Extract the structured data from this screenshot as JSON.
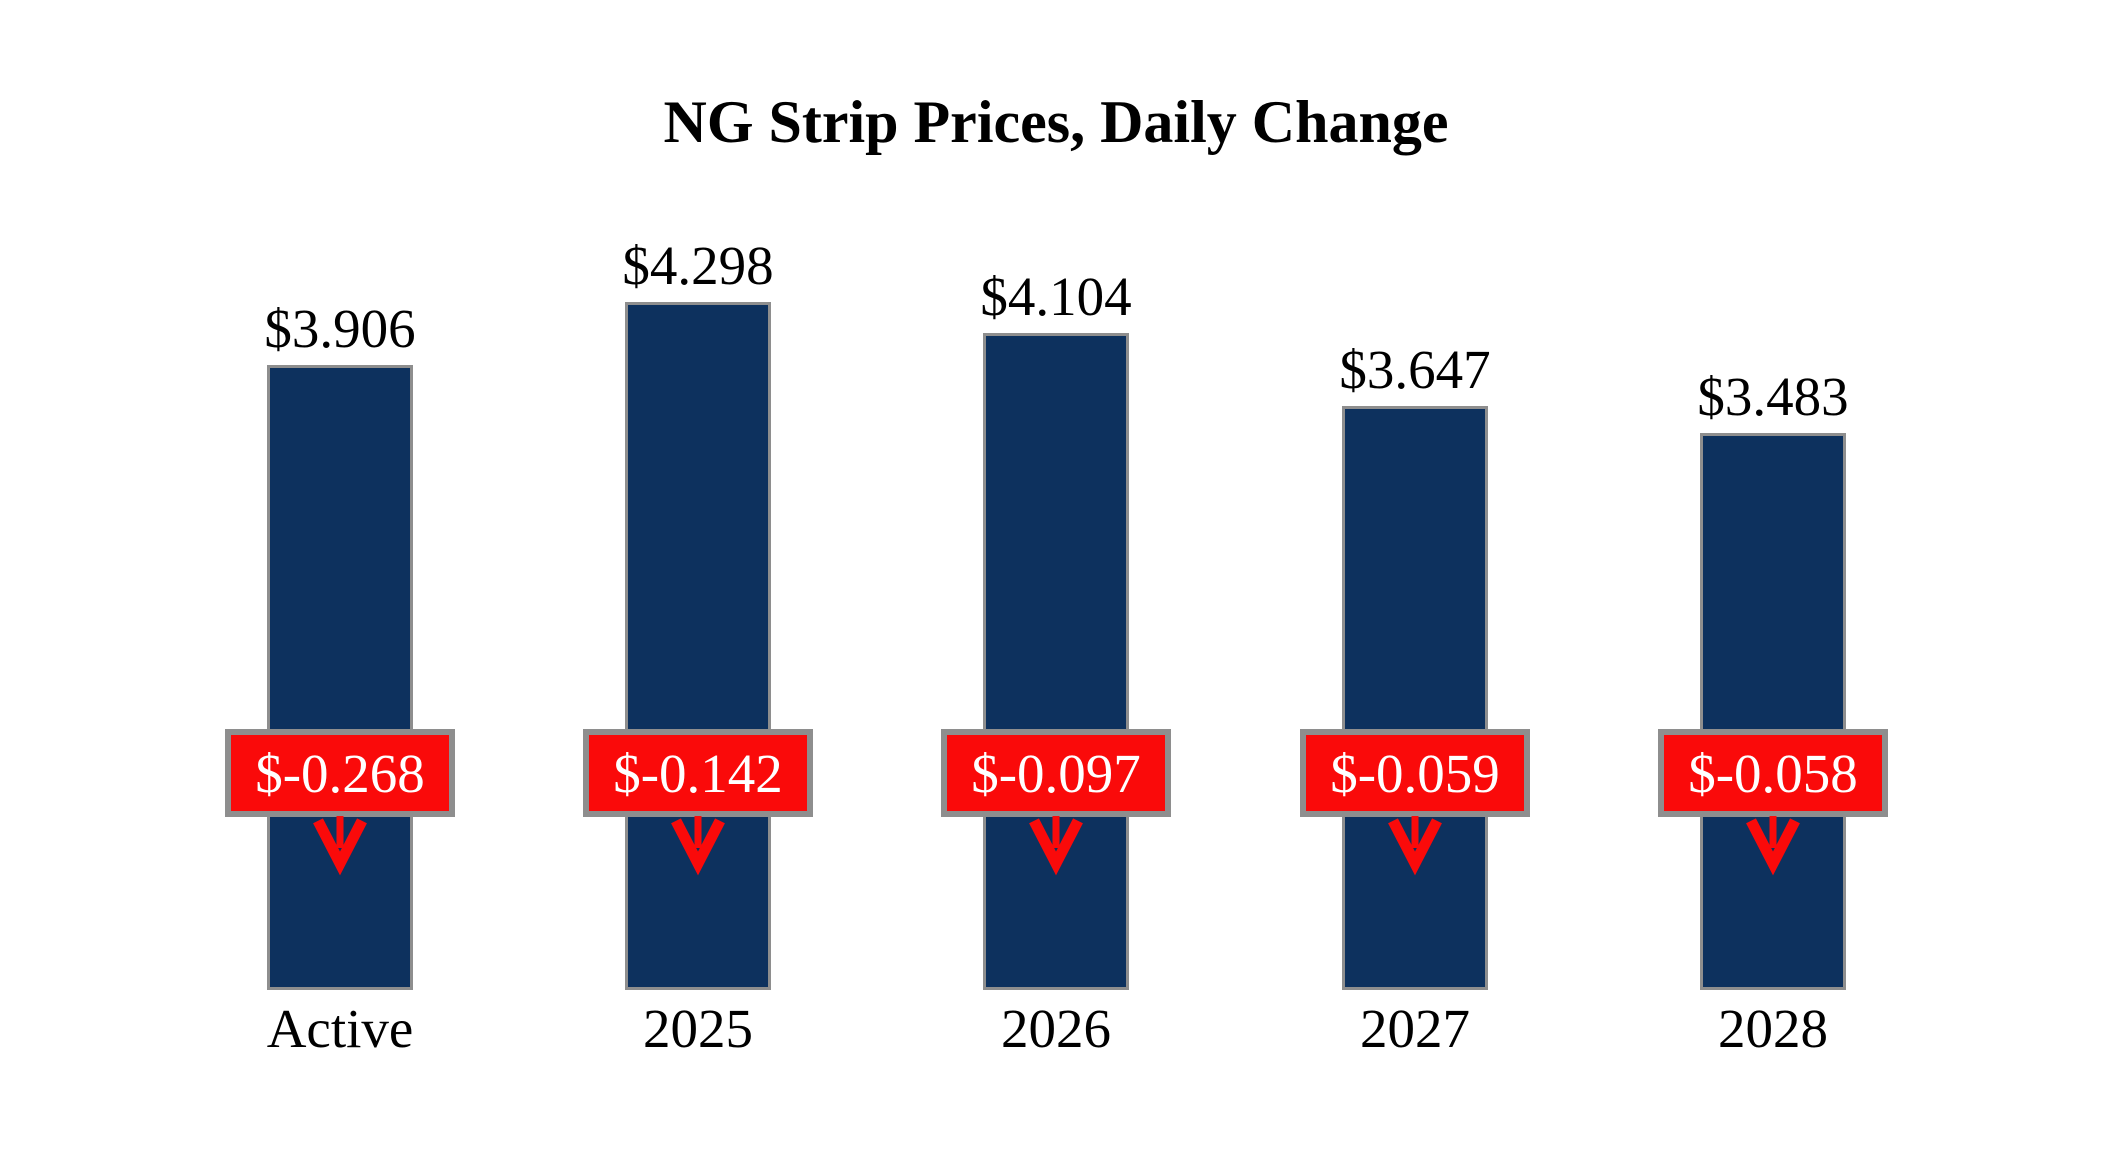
{
  "title": "NG Strip Prices, Daily Change",
  "chart_data": {
    "type": "bar",
    "title": "NG Strip Prices, Daily Change",
    "categories": [
      "Active",
      "2025",
      "2026",
      "2027",
      "2028"
    ],
    "series": [
      {
        "name": "NG Strip Price",
        "values": [
          3.906,
          4.298,
          4.104,
          3.647,
          3.483
        ],
        "labels": [
          "$3.906",
          "$4.298",
          "$4.104",
          "$3.647",
          "$3.483"
        ]
      },
      {
        "name": "Daily Change",
        "values": [
          -0.268,
          -0.142,
          -0.097,
          -0.059,
          -0.058
        ],
        "labels": [
          "$-0.268",
          "$-0.142",
          "$-0.097",
          "$-0.059",
          "$-0.058"
        ]
      }
    ],
    "ylim": [
      0,
      4.5
    ],
    "grid": false,
    "legend": "none",
    "axes_shown": false,
    "icons": {
      "change_direction": "down-arrow"
    },
    "colors": {
      "background": "#FFFFFF",
      "bar_fill": "#0D315E",
      "bar_border": "#8E8E8E",
      "change_box_fill": "#FA0A0A",
      "change_box_border": "#8E8E8E",
      "change_text": "#FFFFFF",
      "value_text": "#000000",
      "category_text": "#000000",
      "arrow": "#FA0A0A"
    }
  }
}
